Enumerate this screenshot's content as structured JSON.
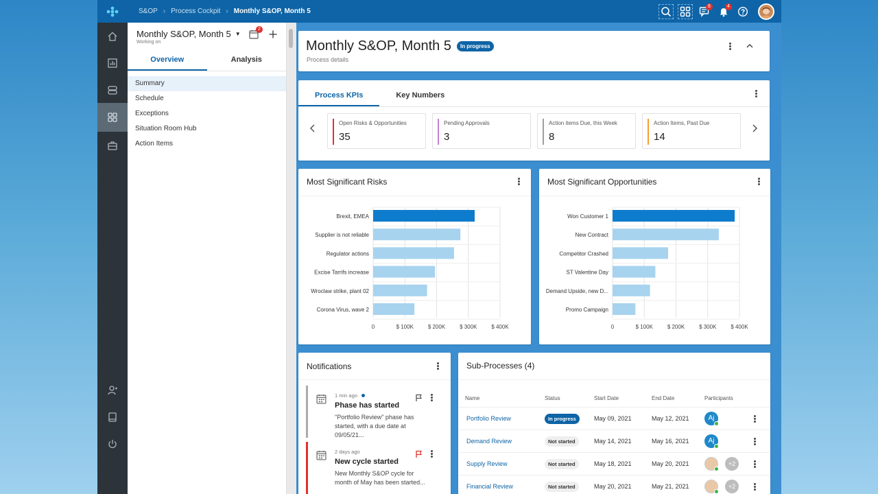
{
  "topbar": {
    "breadcrumbs": [
      "S&OP",
      "Process Cockpit"
    ],
    "current": "Monthly S&OP, Month 5",
    "icons": [
      {
        "name": "search-icon",
        "badge": null
      },
      {
        "name": "apps-grid-icon",
        "badge": null
      },
      {
        "name": "chat-icon",
        "badge": "8"
      },
      {
        "name": "bell-icon",
        "badge": "4"
      },
      {
        "name": "help-icon",
        "badge": null
      }
    ]
  },
  "leftnav": {
    "items": [
      "home-icon",
      "analytics-icon",
      "layers-icon",
      "cockpit-icon",
      "briefcase-icon"
    ],
    "bottom": [
      "user-add-icon",
      "book-icon",
      "power-icon"
    ]
  },
  "sidepanel": {
    "title": "Monthly S&OP, Month 5",
    "subtitle": "Working on",
    "calendar_badge": "2",
    "tabs": [
      "Overview",
      "Analysis"
    ],
    "items": [
      "Summary",
      "Schedule",
      "Exceptions",
      "Situation Room Hub",
      "Action Items"
    ]
  },
  "header": {
    "title": "Monthly S&OP, Month 5",
    "status": "In progress",
    "subtitle": "Process details"
  },
  "kpis": {
    "tabs": [
      "Process KPIs",
      "Key Numbers"
    ],
    "items": [
      {
        "label": "Open Risks & Opportunities",
        "value": "35",
        "color": "#e0312d"
      },
      {
        "label": "Pending Approvals",
        "value": "3",
        "color": "#c77fd6"
      },
      {
        "label": "Action items Due, this Week",
        "value": "8",
        "color": "#9e9e9e"
      },
      {
        "label": "Action Items, Past Due",
        "value": "14",
        "color": "#f0a030"
      }
    ]
  },
  "risks": {
    "title": "Most Significant Risks",
    "chart_data": {
      "type": "bar",
      "orientation": "horizontal",
      "categories": [
        "Brexit, EMEA",
        "Supplier is not  reliable",
        "Regulator actions",
        "Excise Tarrifs increase",
        "Wroclaw strike, plant 02",
        "Corona Virus, wave 2"
      ],
      "values": [
        320,
        275,
        255,
        195,
        170,
        130
      ],
      "unit": "$K",
      "xlim": [
        0,
        400
      ],
      "ticks": [
        "0",
        "$ 100K",
        "$ 200K",
        "$ 300K",
        "$ 400K"
      ],
      "highlight_color": "#0e7ccc",
      "bar_color": "#a7d3ef"
    }
  },
  "opportunities": {
    "title": "Most Significant Opportunities",
    "chart_data": {
      "type": "bar",
      "orientation": "horizontal",
      "categories": [
        "Won Customer 1",
        "New Contract",
        "Competitor Crashed",
        "ST Valentine Day",
        "Demand Upside, new D...",
        "Promo Campaign"
      ],
      "values": [
        385,
        335,
        175,
        135,
        118,
        72
      ],
      "unit": "$K",
      "xlim": [
        0,
        400
      ],
      "ticks": [
        "0",
        "$ 100K",
        "$ 200K",
        "$ 300K",
        "$ 400K"
      ],
      "highlight_color": "#0e7ccc",
      "bar_color": "#a7d3ef"
    }
  },
  "notifications": {
    "title": "Notifications",
    "items": [
      {
        "time": "1 min ago",
        "title": "Phase has started",
        "body": "\"Portfolio Review\" phase has started, with a due date at 09/05/21...",
        "flag_color": "#555",
        "stripe": "#aaaaaa"
      },
      {
        "time": "2 days ago",
        "title": "New cycle started",
        "body": "New Monthly S&OP cycle for month of May has been started...",
        "flag_color": "#e0312d",
        "stripe": "#e0312d"
      }
    ]
  },
  "subprocesses": {
    "title": "Sub-Processes (4)",
    "columns": [
      "Name",
      "Status",
      "Start Date",
      "End Date",
      "Participants"
    ],
    "rows": [
      {
        "name": "Portfolio Review",
        "status": "In progress",
        "start": "May 09, 2021",
        "end": "May 12, 2021",
        "avatar": "Aj",
        "more": ""
      },
      {
        "name": "Demand Review",
        "status": "Not started",
        "start": "May 14, 2021",
        "end": "May 16, 2021",
        "avatar": "Aj",
        "more": ""
      },
      {
        "name": "Supply Review",
        "status": "Not started",
        "start": "May 18, 2021",
        "end": "May 20, 2021",
        "avatar": "",
        "more": "+2"
      },
      {
        "name": "Financial Review",
        "status": "Not started",
        "start": "May 20, 2021",
        "end": "May 21, 2021",
        "avatar": "",
        "more": "+2"
      }
    ]
  }
}
